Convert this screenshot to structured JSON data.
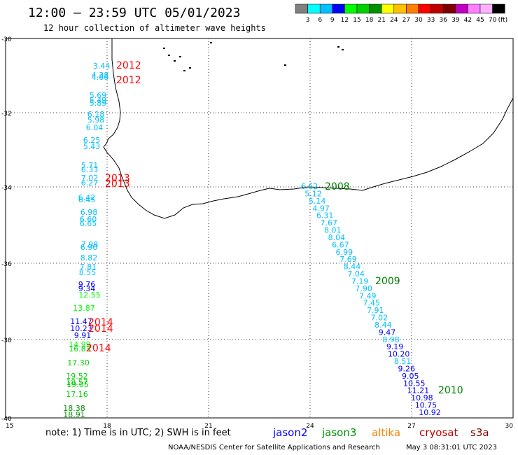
{
  "header": {
    "title": "12:00 – 23:59 UTC 05/01/2023",
    "subtitle": "12 hour collection of altimeter wave heights"
  },
  "scale": {
    "colors": [
      "#808080",
      "#00ffff",
      "#00c0ff",
      "#0000ff",
      "#00ff00",
      "#00d000",
      "#009000",
      "#ffff00",
      "#ffc000",
      "#ff8000",
      "#ff0000",
      "#c00000",
      "#800000",
      "#c000c0",
      "#ff80ff",
      "#ffb0ff",
      "#000000"
    ],
    "labels": [
      "3",
      "6",
      "9",
      "12",
      "15",
      "18",
      "21",
      "24",
      "27",
      "30",
      "33",
      "36",
      "39",
      "42",
      "45",
      "70"
    ],
    "unit": "(ft)"
  },
  "axes": {
    "lon_ticks": [
      "15",
      "18",
      "21",
      "24",
      "27",
      "30"
    ],
    "lat_ticks": [
      "-30",
      "-32",
      "-34",
      "-36",
      "-38",
      "-40"
    ]
  },
  "labels": {
    "years": [
      {
        "text": "2012",
        "color": "#ff0000"
      },
      {
        "text": "2012",
        "color": "#ff0000"
      },
      {
        "text": "2013",
        "color": "#ff0000"
      },
      {
        "text": "2013",
        "color": "#ff0000"
      },
      {
        "text": "2014",
        "color": "#ff0000"
      },
      {
        "text": "2014",
        "color": "#ff0000"
      },
      {
        "text": "2014",
        "color": "#ff0000"
      },
      {
        "text": "2008",
        "color": "#008000"
      },
      {
        "text": "2009",
        "color": "#008000"
      },
      {
        "text": "2010",
        "color": "#008000"
      }
    ],
    "west_track": [
      {
        "v": "3.44",
        "c": "#00c0ff"
      },
      {
        "v": "4.38",
        "c": "#00c0ff"
      },
      {
        "v": "4.66",
        "c": "#00c0ff"
      },
      {
        "v": "5.69",
        "c": "#00c0ff"
      },
      {
        "v": "5.49",
        "c": "#00c0ff"
      },
      {
        "v": "5.89",
        "c": "#00c0ff"
      },
      {
        "v": "6.18",
        "c": "#00c0ff"
      },
      {
        "v": "5.98",
        "c": "#00c0ff"
      },
      {
        "v": "6.04",
        "c": "#00c0ff"
      },
      {
        "v": "6.25",
        "c": "#00c0ff"
      },
      {
        "v": "5.43",
        "c": "#00c0ff"
      },
      {
        "v": "5.71",
        "c": "#00c0ff"
      },
      {
        "v": "6.33",
        "c": "#00c0ff"
      },
      {
        "v": "7.02",
        "c": "#00c0ff"
      },
      {
        "v": "6.27",
        "c": "#00c0ff"
      },
      {
        "v": "6.42",
        "c": "#00c0ff"
      },
      {
        "v": "6.45",
        "c": "#00c0ff"
      },
      {
        "v": "6.98",
        "c": "#00c0ff"
      },
      {
        "v": "6.60",
        "c": "#00c0ff"
      },
      {
        "v": "6.65",
        "c": "#00c0ff"
      },
      {
        "v": "7.98",
        "c": "#00c0ff"
      },
      {
        "v": "6.90",
        "c": "#00c0ff"
      },
      {
        "v": "8.82",
        "c": "#00c0ff"
      },
      {
        "v": "7.81",
        "c": "#00c0ff"
      },
      {
        "v": "8.55",
        "c": "#00c0ff"
      },
      {
        "v": "9.76",
        "c": "#0000ff"
      },
      {
        "v": "9.34",
        "c": "#0000ff"
      },
      {
        "v": "12.55",
        "c": "#00ff00"
      },
      {
        "v": "13.87",
        "c": "#00ff00"
      },
      {
        "v": "11.47",
        "c": "#0000ff"
      },
      {
        "v": "10.23",
        "c": "#0000ff"
      },
      {
        "v": "9.91",
        "c": "#0000ff"
      },
      {
        "v": "14.99",
        "c": "#00ff00"
      },
      {
        "v": "16.83",
        "c": "#00d000"
      },
      {
        "v": "17.30",
        "c": "#00d000"
      },
      {
        "v": "19.52",
        "c": "#00d000"
      },
      {
        "v": "18.57",
        "c": "#00d000"
      },
      {
        "v": "19.05",
        "c": "#00d000"
      },
      {
        "v": "17.16",
        "c": "#00d000"
      },
      {
        "v": "18.38",
        "c": "#009000"
      },
      {
        "v": "18.91",
        "c": "#009000"
      }
    ],
    "east_track": [
      {
        "v": "6.62",
        "c": "#00c0ff"
      },
      {
        "v": "5.12",
        "c": "#00c0ff"
      },
      {
        "v": "5.14",
        "c": "#00c0ff"
      },
      {
        "v": "4.97",
        "c": "#00c0ff"
      },
      {
        "v": "6.31",
        "c": "#00c0ff"
      },
      {
        "v": "7.67",
        "c": "#00c0ff"
      },
      {
        "v": "8.01",
        "c": "#00c0ff"
      },
      {
        "v": "8.04",
        "c": "#00c0ff"
      },
      {
        "v": "6.67",
        "c": "#00c0ff"
      },
      {
        "v": "6.99",
        "c": "#00c0ff"
      },
      {
        "v": "7.69",
        "c": "#00c0ff"
      },
      {
        "v": "8.44",
        "c": "#00c0ff"
      },
      {
        "v": "7.04",
        "c": "#00c0ff"
      },
      {
        "v": "7.19",
        "c": "#00c0ff"
      },
      {
        "v": "7.90",
        "c": "#00c0ff"
      },
      {
        "v": "7.49",
        "c": "#00c0ff"
      },
      {
        "v": "7.45",
        "c": "#00c0ff"
      },
      {
        "v": "7.91",
        "c": "#00c0ff"
      },
      {
        "v": "7.02",
        "c": "#00c0ff"
      },
      {
        "v": "8.44",
        "c": "#00c0ff"
      },
      {
        "v": "9.47",
        "c": "#0000ff"
      },
      {
        "v": "8.98",
        "c": "#00c0ff"
      },
      {
        "v": "9.19",
        "c": "#0000ff"
      },
      {
        "v": "10.20",
        "c": "#0000ff"
      },
      {
        "v": "8.51",
        "c": "#00c0ff"
      },
      {
        "v": "9.26",
        "c": "#0000ff"
      },
      {
        "v": "9.05",
        "c": "#0000ff"
      },
      {
        "v": "10.55",
        "c": "#0000ff"
      },
      {
        "v": "11.21",
        "c": "#0000ff"
      },
      {
        "v": "10.98",
        "c": "#0000ff"
      },
      {
        "v": "10.75",
        "c": "#0000ff"
      },
      {
        "v": "10.92",
        "c": "#0000ff"
      }
    ]
  },
  "footer": {
    "note": "note:  1) Time is in UTC;  2) SWH is in feet",
    "satellites": [
      {
        "name": "jason2",
        "color": "#0000ff"
      },
      {
        "name": "jason3",
        "color": "#009000"
      },
      {
        "name": "altika",
        "color": "#ff8000"
      },
      {
        "name": "cryosat",
        "color": "#c00000"
      },
      {
        "name": "s3a",
        "color": "#800000"
      }
    ],
    "credit": "NOAA/NESDIS Center for Satellite Applications and Research",
    "timestamp": "May  3 08:31:01 UTC 2023"
  }
}
